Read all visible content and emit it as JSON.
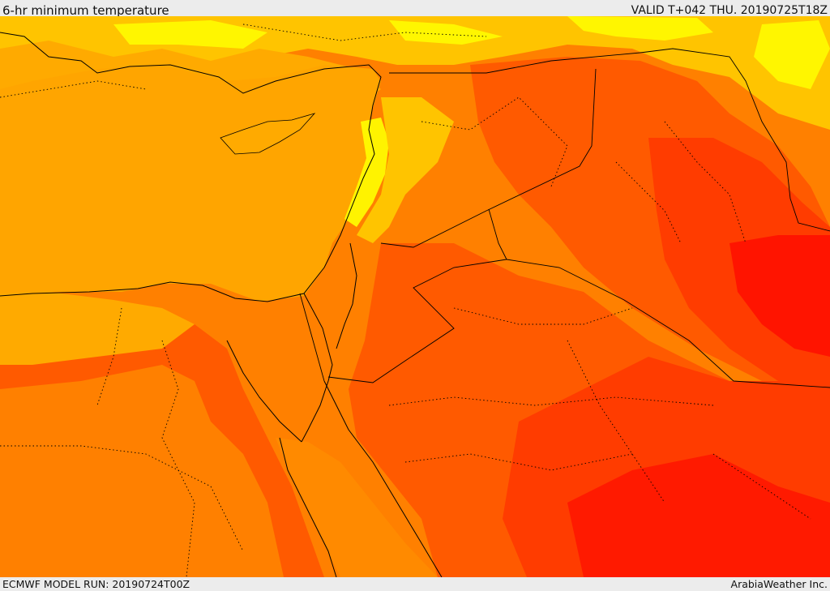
{
  "header": {
    "title": "6-hr minimum temperature",
    "valid": "VALID T+042 THU. 20190725T18Z"
  },
  "footer": {
    "model_run": "ECMWF MODEL RUN: 20190724T00Z",
    "credit": "ArabiaWeather Inc."
  },
  "palette": {
    "sea": "#ffa500",
    "yellow": "#ffff00",
    "gold": "#ffc400",
    "amber": "#ffaa00",
    "orange": "#ff8000",
    "dark_orange": "#ff5a00",
    "red_orange": "#ff3c00",
    "red": "#ff1400"
  }
}
